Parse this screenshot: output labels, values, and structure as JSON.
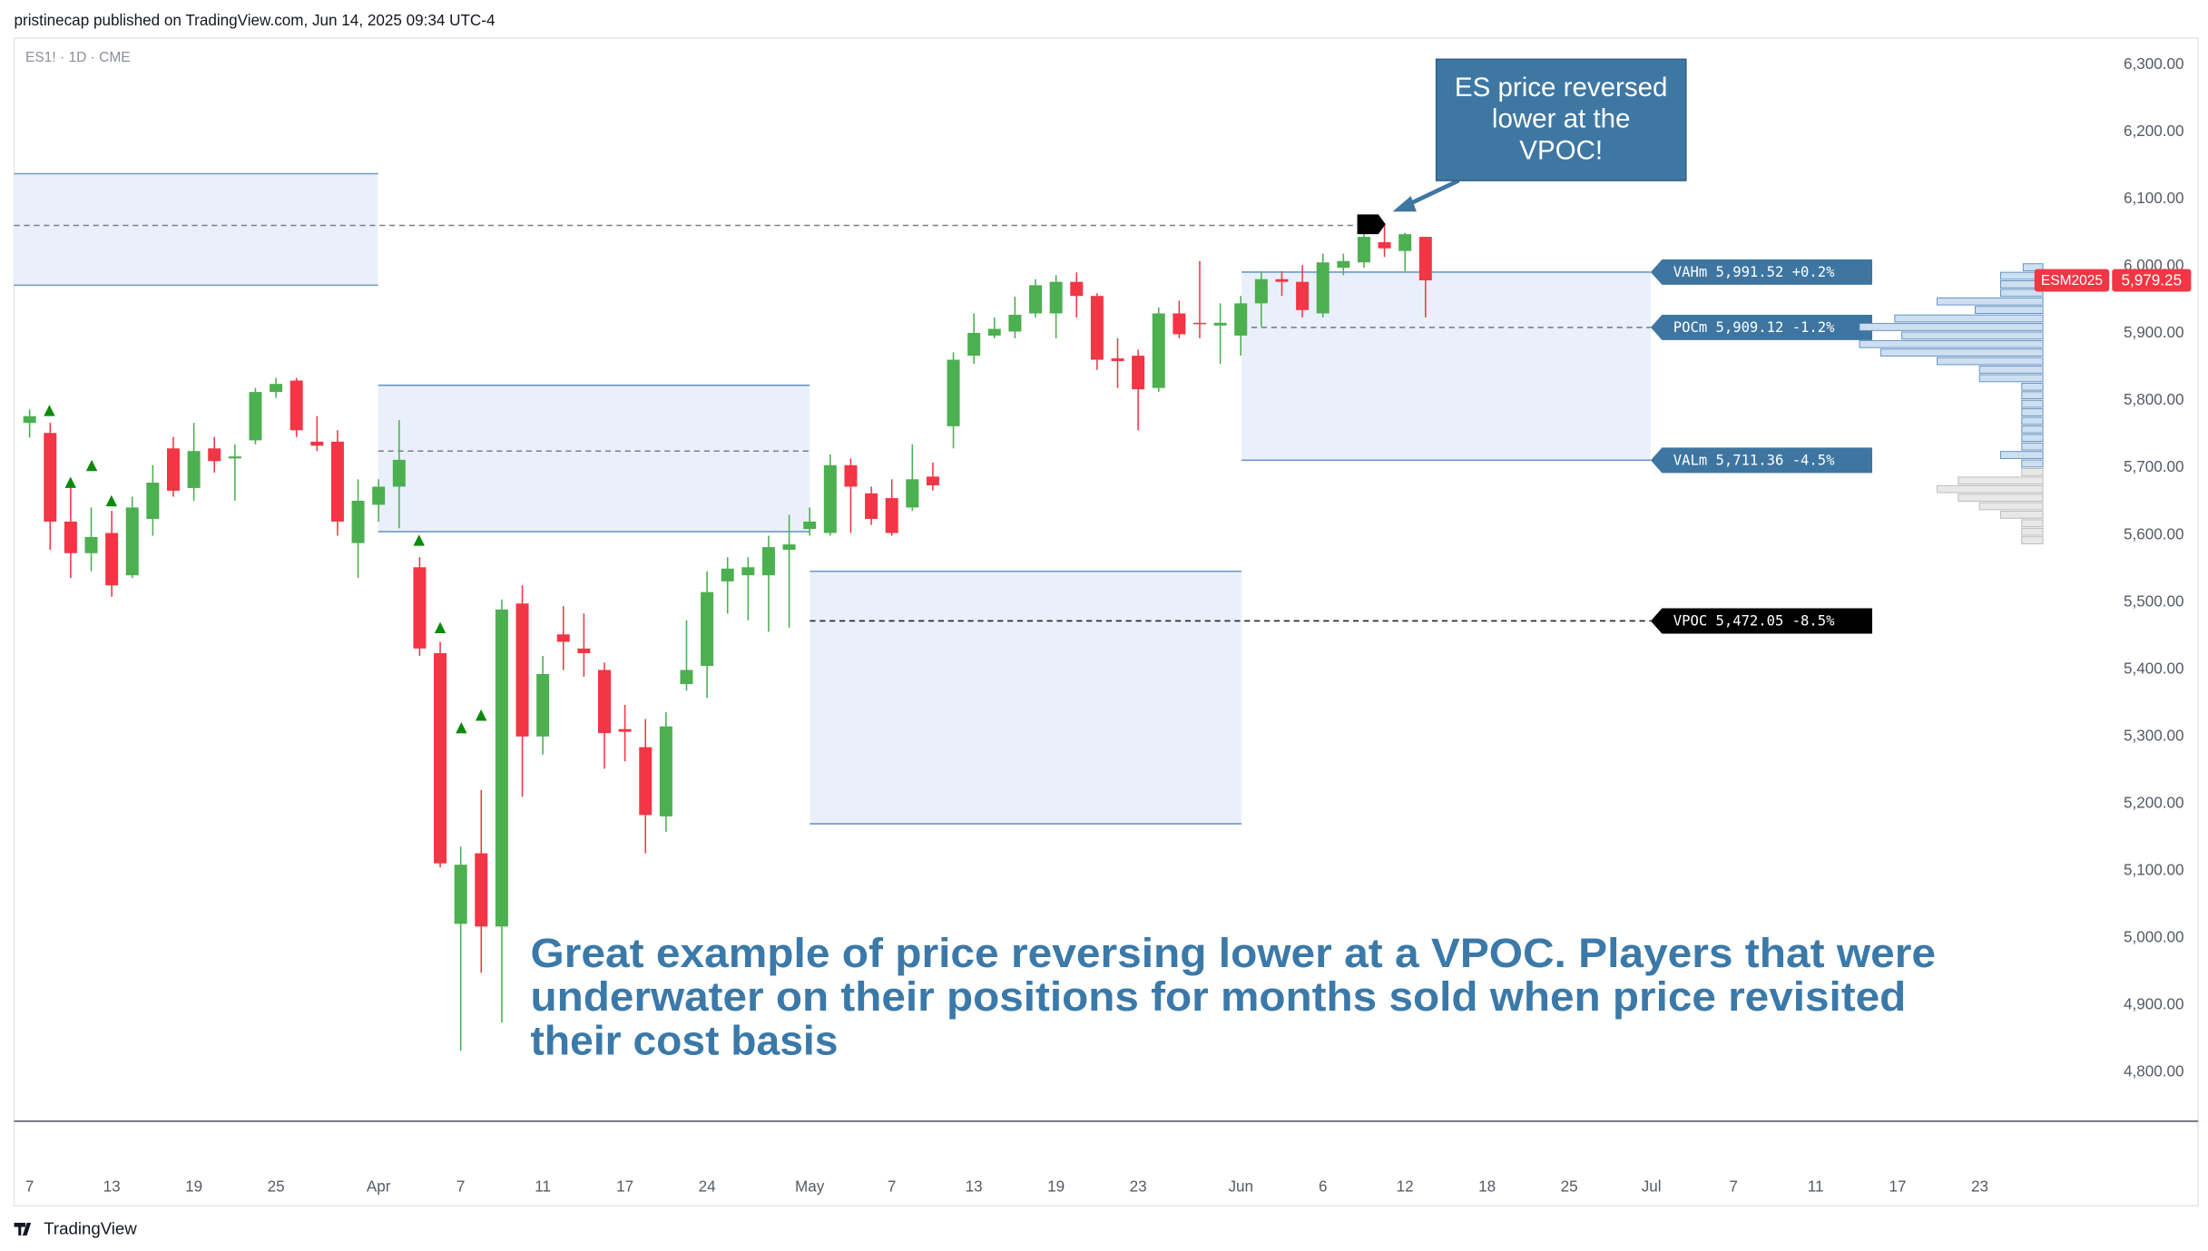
{
  "chart_data": {
    "type": "candlestick",
    "header": "pristinecap published on TradingView.com, Jun 14, 2025 09:34 UTC-4",
    "symbol": "ES1! · 1D · CME",
    "brand": "TradingView",
    "up_color": "#4caf50",
    "down_color": "#f23645",
    "categories": [
      "7",
      null,
      null,
      null,
      "13",
      null,
      null,
      null,
      "19",
      null,
      null,
      null,
      "25",
      null,
      null,
      null,
      null,
      "Apr",
      null,
      null,
      null,
      "7",
      null,
      null,
      null,
      "11",
      null,
      null,
      null,
      "17",
      null,
      null,
      null,
      "24",
      null,
      null,
      null,
      null,
      "May",
      null,
      null,
      null,
      "7",
      null,
      null,
      null,
      "13",
      null,
      null,
      null,
      "19",
      null,
      null,
      null,
      "23",
      null,
      null,
      null,
      null,
      "Jun",
      null,
      null,
      null,
      "6",
      null,
      null,
      null,
      "12",
      null,
      null,
      null,
      "18",
      null,
      null,
      null,
      "25",
      null,
      null,
      null,
      "Jul",
      null,
      null,
      null,
      "7",
      null,
      null,
      null,
      "11",
      null,
      null,
      null,
      "17",
      null,
      null,
      null,
      "23"
    ],
    "open": [
      5767,
      5752,
      5620,
      5573,
      5603,
      5540,
      5624,
      5729,
      5670,
      5729,
      5714,
      5741,
      5813,
      5830,
      5739,
      5739,
      5588,
      5645,
      5672,
      5552,
      5424,
      5021,
      5126,
      5017,
      5498,
      5300,
      5452,
      5431,
      5399,
      5311,
      5284,
      5181,
      5378,
      5405,
      5531,
      5540,
      5540,
      5578,
      5609,
      5603,
      5704,
      5662,
      5655,
      5641,
      5687,
      5762,
      5867,
      5897,
      5903,
      5930,
      5930,
      5977,
      5956,
      5863,
      5867,
      5819,
      5930,
      5916,
      5912,
      5897,
      5945,
      5981,
      5977,
      5930,
      5998,
      6006,
      6036,
      6023,
      6044,
      null,
      null,
      null,
      null,
      null,
      null,
      null,
      null,
      null,
      null,
      null,
      null,
      null,
      null,
      null,
      null,
      null,
      null,
      null,
      null,
      null,
      null,
      null,
      null,
      null,
      null,
      null
    ],
    "high": [
      5787,
      5767,
      5683,
      5641,
      5636,
      5657,
      5704,
      5746,
      5767,
      5746,
      5735,
      5819,
      5834,
      5834,
      5777,
      5756,
      5683,
      5683,
      5771,
      5567,
      5441,
      5136,
      5220,
      5504,
      5525,
      5420,
      5494,
      5483,
      5410,
      5347,
      5326,
      5336,
      5473,
      5546,
      5567,
      5567,
      5599,
      5630,
      5641,
      5720,
      5714,
      5672,
      5683,
      5735,
      5708,
      5872,
      5930,
      5924,
      5955,
      5981,
      5987,
      5991,
      5960,
      5893,
      5876,
      5939,
      5949,
      6008,
      5945,
      5956,
      5993,
      5993,
      6002,
      6019,
      6019,
      6061,
      6065,
      6050,
      6044,
      null,
      null,
      null,
      null,
      null,
      null,
      null,
      null,
      null,
      null,
      null,
      null,
      null,
      null,
      null,
      null,
      null,
      null,
      null,
      null,
      null,
      null,
      null,
      null,
      null,
      null,
      null
    ],
    "low": [
      5745,
      5578,
      5536,
      5546,
      5508,
      5536,
      5599,
      5657,
      5651,
      5693,
      5651,
      5735,
      5804,
      5746,
      5725,
      5599,
      5536,
      5620,
      5610,
      5420,
      5105,
      4832,
      4948,
      4874,
      5210,
      5273,
      5399,
      5389,
      5252,
      5263,
      5126,
      5158,
      5368,
      5357,
      5483,
      5473,
      5456,
      5462,
      5599,
      5599,
      5603,
      5615,
      5599,
      5636,
      5666,
      5729,
      5855,
      5893,
      5893,
      5924,
      5893,
      5924,
      5846,
      5819,
      5756,
      5813,
      5893,
      5893,
      5855,
      5867,
      5910,
      5956,
      5924,
      5924,
      5987,
      5998,
      6014,
      5993,
      5924,
      null,
      null,
      null,
      null,
      null,
      null,
      null,
      null,
      null,
      null,
      null,
      null,
      null,
      null,
      null,
      null,
      null,
      null,
      null,
      null,
      null,
      null,
      null,
      null,
      null,
      null,
      null
    ],
    "close": [
      5777,
      5620,
      5573,
      5597,
      5525,
      5641,
      5678,
      5666,
      5725,
      5710,
      5717,
      5813,
      5825,
      5756,
      5733,
      5620,
      5651,
      5672,
      5712,
      5431,
      5111,
      5109,
      5017,
      5489,
      5300,
      5393,
      5441,
      5424,
      5305,
      5307,
      5183,
      5315,
      5399,
      5515,
      5550,
      5552,
      5582,
      5586,
      5620,
      5704,
      5672,
      5624,
      5603,
      5683,
      5674,
      5861,
      5901,
      5907,
      5928,
      5972,
      5977,
      5956,
      5861,
      5859,
      5817,
      5930,
      5899,
      5914,
      5916,
      5945,
      5981,
      5977,
      5935,
      6006,
      6008,
      6044,
      6027,
      6048,
      5979.25,
      null,
      null,
      null,
      null,
      null,
      null,
      null,
      null,
      null,
      null,
      null,
      null,
      null,
      null,
      null,
      null,
      null,
      null,
      null,
      null,
      null,
      null,
      null,
      null,
      null,
      null,
      null
    ],
    "ylim": [
      4727,
      6340
    ],
    "yticks": [
      {
        "value": 4800,
        "label": "4,800.00"
      },
      {
        "value": 4900,
        "label": "4,900.00"
      },
      {
        "value": 5000,
        "label": "5,000.00"
      },
      {
        "value": 5100,
        "label": "5,100.00"
      },
      {
        "value": 5200,
        "label": "5,200.00"
      },
      {
        "value": 5300,
        "label": "5,300.00"
      },
      {
        "value": 5400,
        "label": "5,400.00"
      },
      {
        "value": 5500,
        "label": "5,500.00"
      },
      {
        "value": 5600,
        "label": "5,600.00"
      },
      {
        "value": 5700,
        "label": "5,700.00"
      },
      {
        "value": 5800,
        "label": "5,800.00"
      },
      {
        "value": 5900,
        "label": "5,900.00"
      },
      {
        "value": 6000,
        "label": "6,000.00"
      },
      {
        "value": 6100,
        "label": "6,100.00"
      },
      {
        "value": 6200,
        "label": "6,200.00"
      },
      {
        "value": 6300,
        "label": "6,300.00"
      }
    ],
    "grid": false,
    "zones": [
      {
        "high": 6138,
        "low": 5972,
        "poc": 6061
      },
      {
        "high": 5823,
        "low": 5605,
        "poc": 5725
      },
      {
        "high": 5546,
        "low": 5170,
        "poc": {
          "value": 5472.05,
          "label": "VPOC 5,472.05 -8.5%"
        }
      },
      {
        "high": {
          "value": 5991.52,
          "label": "VAHm 5,991.52 +0.2%"
        },
        "low": {
          "value": 5711.36,
          "label": "VALm 5,711.36 -4.5%"
        },
        "poc": {
          "value": 5909.12,
          "label": "POCm 5,909.12 -1.2%"
        }
      }
    ],
    "last_price": {
      "symbol": "ESM2025",
      "value": 5979.25,
      "label": "5,979.25"
    },
    "volume_profile": [
      14,
      30,
      30,
      30,
      75,
      48,
      105,
      130,
      100,
      130,
      115,
      75,
      45,
      45,
      15,
      15,
      15,
      15,
      15,
      15,
      15,
      15,
      30,
      15,
      15,
      60,
      75,
      60,
      45,
      30,
      15,
      15,
      15
    ],
    "callout": [
      "ES price reversed",
      "lower at the",
      "VPOC!"
    ],
    "note": [
      "Great example of price reversing lower at a VPOC. Players that were",
      "underwater on their positions for months sold when price revisited",
      "their cost basis"
    ]
  }
}
